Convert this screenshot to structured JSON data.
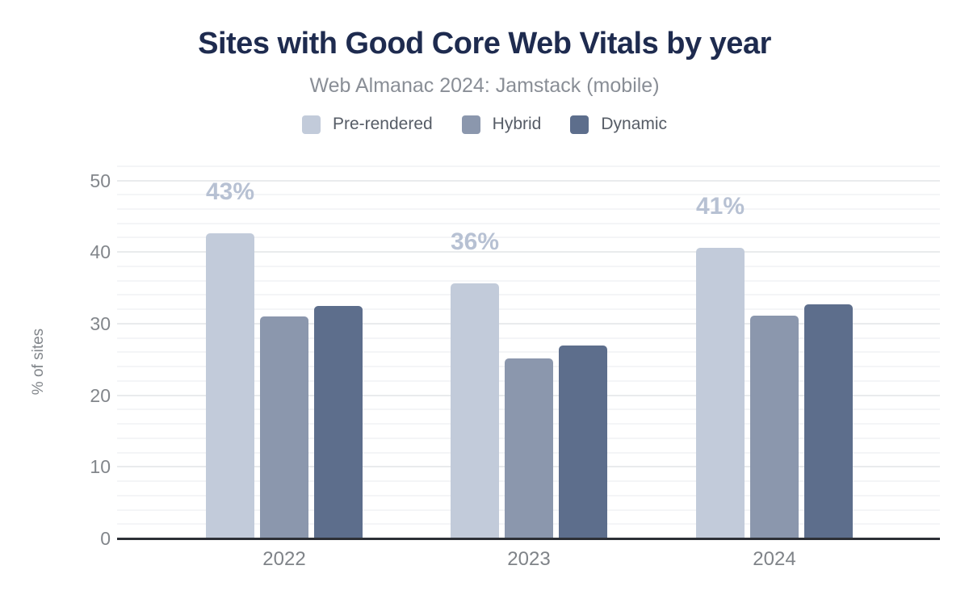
{
  "header": {
    "title": "Sites with Good Core Web Vitals by year",
    "subtitle": "Web Almanac 2024: Jamstack (mobile)"
  },
  "colors": {
    "title_navy": "#1e2b4f",
    "subtitle_gray": "#898e96",
    "axis_text_gray": "#82868b",
    "axis_line": "#2d3036",
    "gridline_major": "#e9ebed",
    "gridline_minor": "#f4f5f7",
    "data_label": "#b7c1d3"
  },
  "chart_data": {
    "type": "bar",
    "title": "Sites with Good Core Web Vitals by year",
    "subtitle": "Web Almanac 2024: Jamstack (mobile)",
    "categories": [
      "2022",
      "2023",
      "2024"
    ],
    "series": [
      {
        "name": "Pre-rendered",
        "color": "#c2cbda",
        "values": [
          42.6,
          35.6,
          40.6
        ],
        "data_labels": [
          "43%",
          "36%",
          "41%"
        ]
      },
      {
        "name": "Hybrid",
        "color": "#8b97ad",
        "values": [
          31.0,
          25.1,
          31.1
        ],
        "data_labels": null
      },
      {
        "name": "Dynamic",
        "color": "#5d6e8c",
        "values": [
          32.5,
          27.0,
          32.7
        ],
        "data_labels": null
      }
    ],
    "xlabel": "",
    "ylabel": "% of sites",
    "ylim": [
      0,
      52
    ],
    "yticks": [
      0,
      10,
      20,
      30,
      40,
      50
    ],
    "grid": {
      "major_every": 10,
      "minor_every": 2,
      "minor_max": 52
    },
    "legend_position": "top",
    "data_label_series": "Pre-rendered"
  }
}
